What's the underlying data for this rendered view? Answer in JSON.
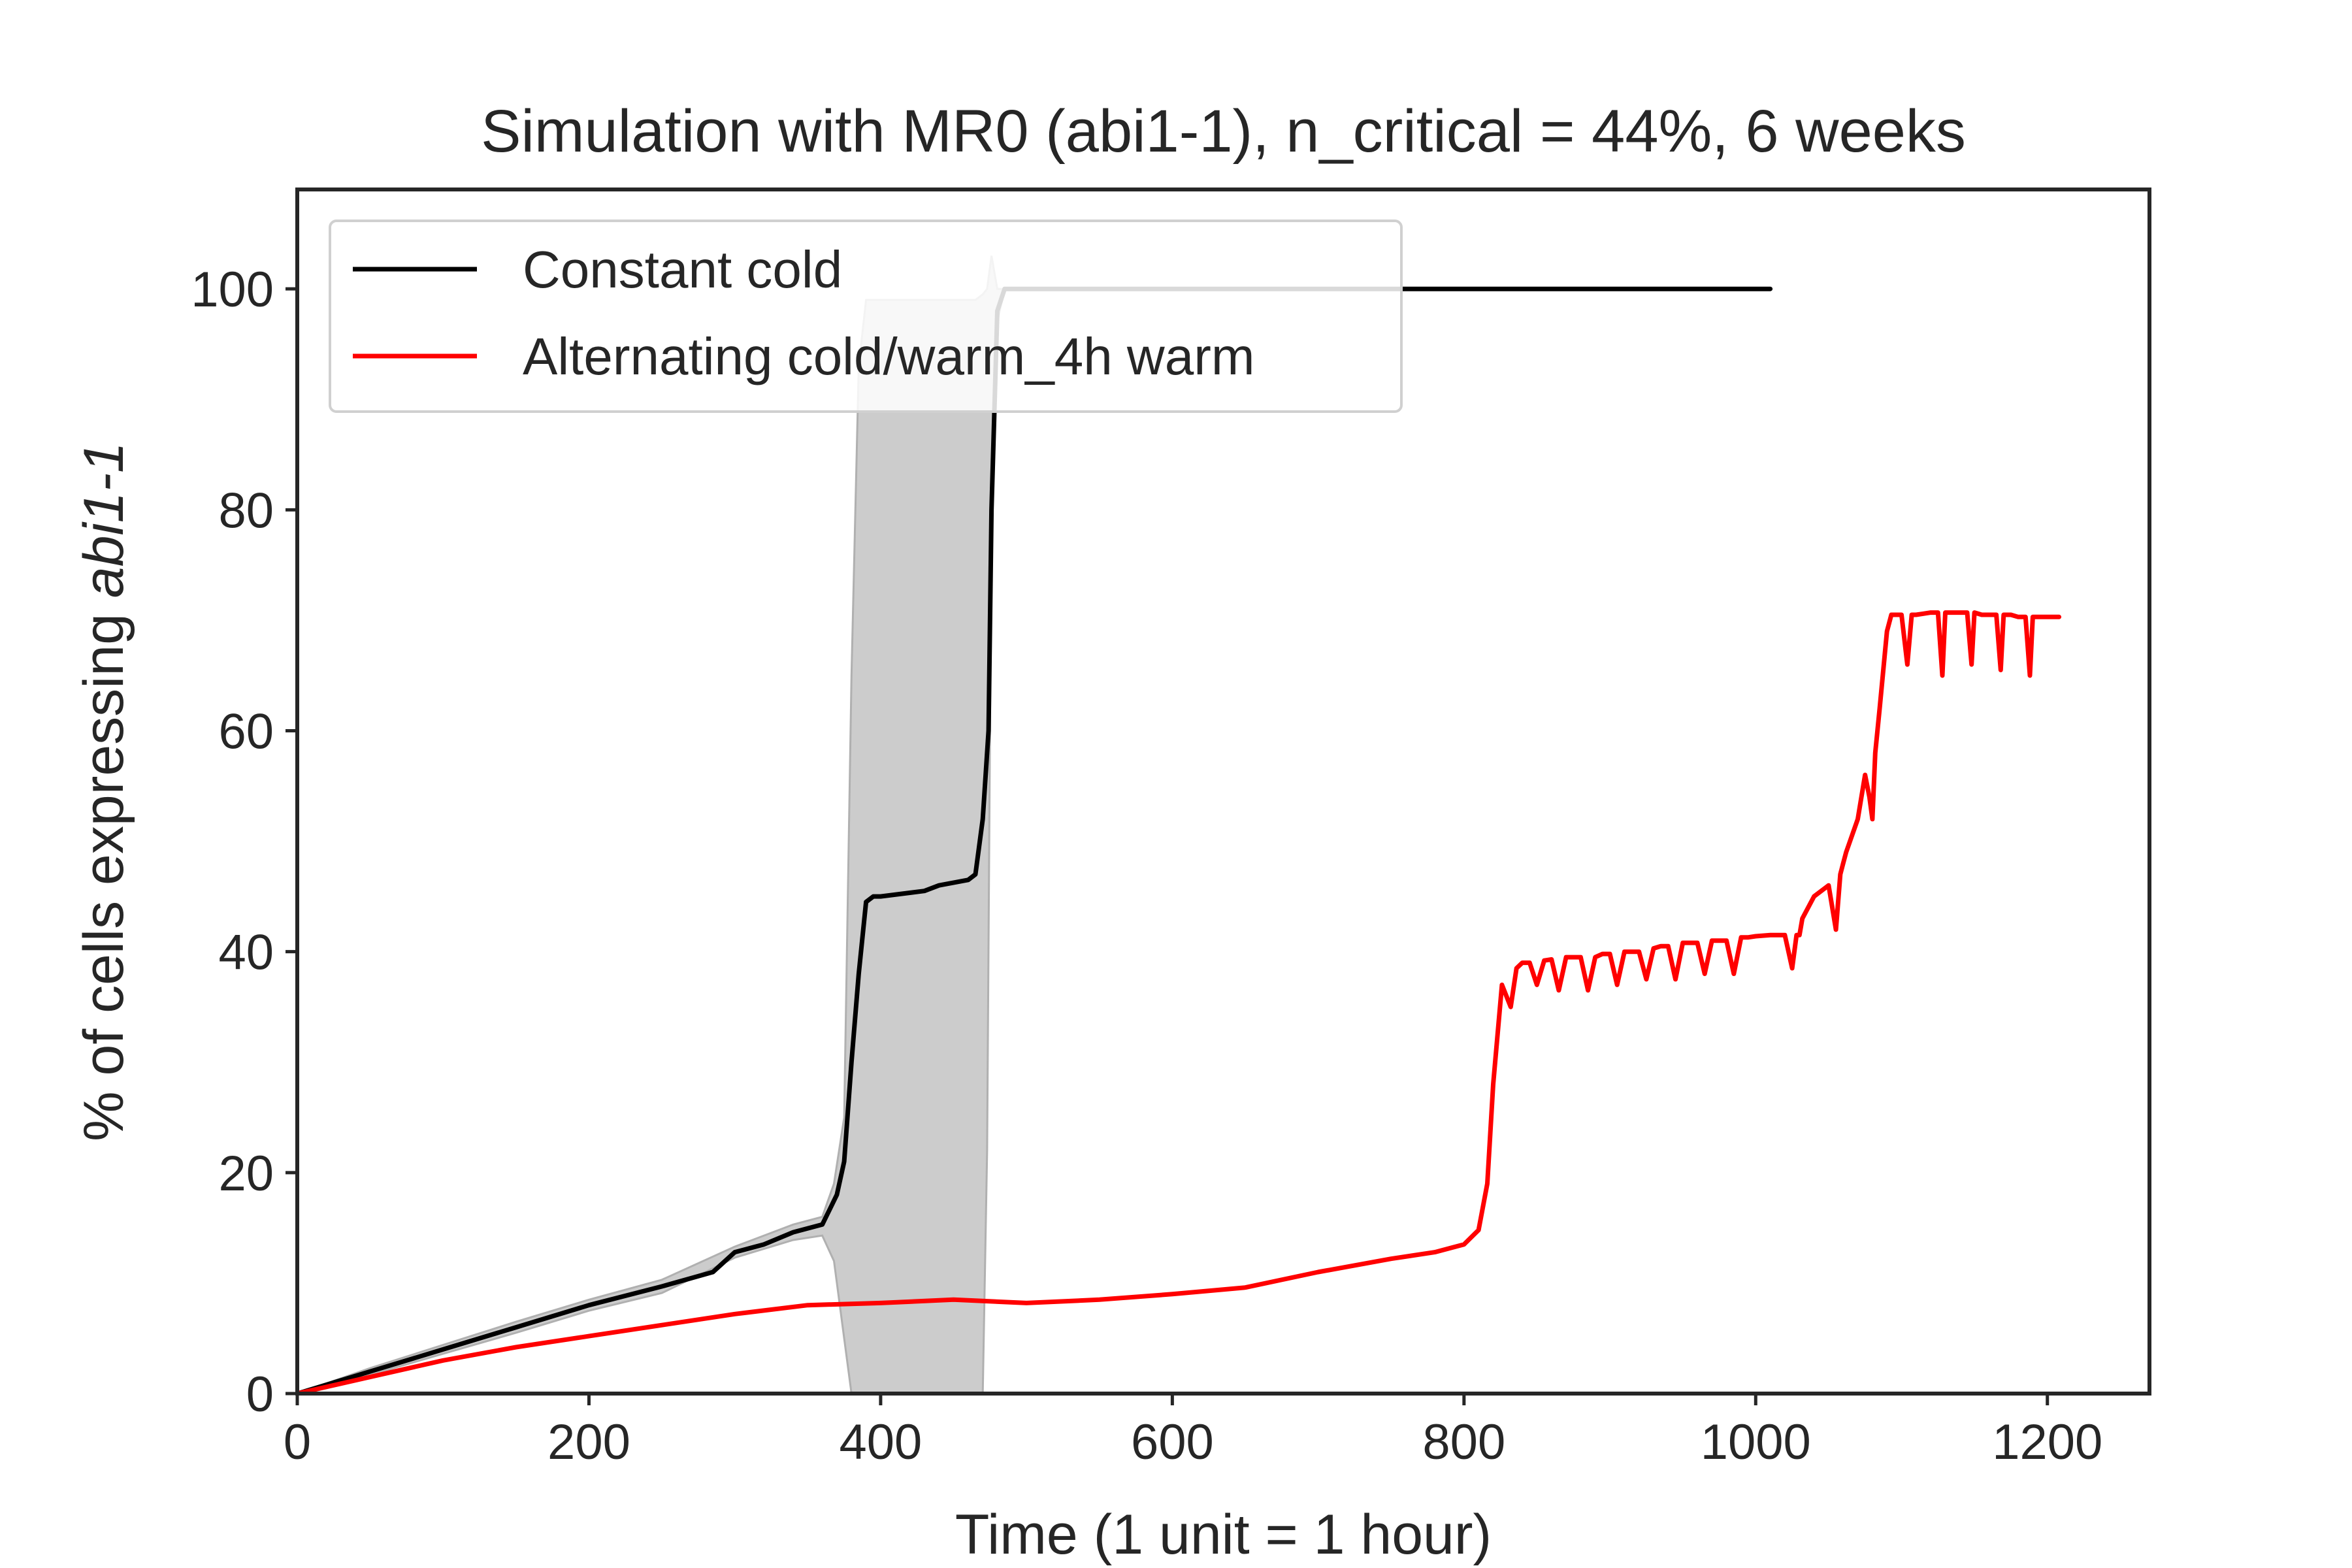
{
  "chart_data": {
    "type": "line",
    "title": "Simulation with MR0 (abi1-1), n_critical = 44%, 6 weeks",
    "xlabel": "Time (1 unit = 1 hour)",
    "ylabel_prefix": "% of cells expressing ",
    "ylabel_italic": "abi1-1",
    "xlim": [
      0,
      1270
    ],
    "ylim": [
      0,
      109
    ],
    "xticks": [
      0,
      200,
      400,
      600,
      800,
      1000,
      1200
    ],
    "yticks": [
      0,
      20,
      40,
      60,
      80,
      100
    ],
    "grid": false,
    "legend_position": "top-left",
    "series": [
      {
        "name": "Constant cold",
        "color": "#000000",
        "x": [
          0,
          50,
          100,
          150,
          200,
          250,
          285,
          300,
          320,
          340,
          360,
          370,
          375,
          380,
          385,
          390,
          395,
          400,
          430,
          440,
          460,
          465,
          470,
          474,
          476,
          480,
          485,
          490,
          500,
          600,
          700,
          800,
          900,
          1010
        ],
        "y": [
          0,
          2,
          4,
          6,
          8,
          9.7,
          11,
          12.8,
          13.5,
          14.6,
          15.3,
          18,
          21,
          30,
          38,
          44.5,
          45,
          45,
          45.5,
          46,
          46.5,
          47,
          52,
          60,
          80,
          98,
          100,
          100,
          100,
          100,
          100,
          100,
          100,
          100
        ],
        "band_x": [
          0,
          50,
          100,
          150,
          200,
          250,
          300,
          340,
          360,
          368,
          375,
          380,
          385,
          390,
          400,
          440,
          455,
          465,
          470,
          473,
          476,
          480,
          485,
          490,
          500,
          600,
          800,
          1010
        ],
        "band_upper": [
          0,
          2.3,
          4.4,
          6.5,
          8.5,
          10.3,
          13.3,
          15.3,
          16,
          19,
          25,
          65,
          93,
          99,
          99,
          99,
          99,
          99,
          99.5,
          100,
          103,
          100,
          100,
          100,
          100,
          100,
          100,
          100
        ],
        "band_lower": [
          0,
          1.7,
          3.6,
          5.5,
          7.5,
          9.1,
          12.3,
          13.9,
          14.3,
          12,
          5,
          0,
          0,
          0,
          0,
          0,
          0,
          0,
          0,
          22,
          80,
          97,
          100,
          100,
          100,
          100,
          100,
          100
        ],
        "band_color": "#cccccc"
      },
      {
        "name": "Alternating cold/warm_4h warm",
        "color": "#ff0000",
        "x": [
          0,
          50,
          100,
          150,
          200,
          250,
          300,
          350,
          400,
          450,
          500,
          550,
          600,
          650,
          700,
          750,
          780,
          800,
          810,
          816,
          820,
          826,
          832,
          836,
          840,
          845,
          850,
          855,
          860,
          865,
          870,
          875,
          880,
          885,
          890,
          895,
          900,
          905,
          910,
          915,
          920,
          925,
          930,
          935,
          940,
          945,
          950,
          955,
          960,
          965,
          970,
          975,
          980,
          985,
          990,
          995,
          1000,
          1010,
          1020,
          1025,
          1028,
          1030,
          1032,
          1040,
          1050,
          1055,
          1058,
          1060,
          1062,
          1070,
          1075,
          1078,
          1080,
          1082,
          1085,
          1090,
          1093,
          1095,
          1100,
          1104,
          1107,
          1110,
          1115,
          1120,
          1125,
          1128,
          1130,
          1135,
          1140,
          1145,
          1148,
          1150,
          1155,
          1160,
          1165,
          1168,
          1170,
          1175,
          1180,
          1185,
          1188,
          1190,
          1195,
          1200,
          1205,
          1208
        ],
        "y": [
          0,
          1.5,
          3,
          4.2,
          5.2,
          6.2,
          7.2,
          8,
          8.2,
          8.5,
          8.2,
          8.5,
          9,
          9.6,
          11,
          12.2,
          12.8,
          13.5,
          14.8,
          19,
          28,
          37,
          35,
          38.5,
          39,
          39,
          37,
          39.2,
          39.3,
          36.5,
          39.5,
          39.5,
          39.5,
          36.5,
          39.5,
          39.8,
          39.8,
          37,
          40,
          40,
          40,
          37.5,
          40.3,
          40.5,
          40.5,
          37.5,
          40.8,
          40.8,
          40.8,
          38,
          41,
          41,
          41,
          38,
          41.3,
          41.3,
          41.4,
          41.5,
          41.5,
          38.5,
          41.5,
          41.5,
          43,
          45,
          46,
          42,
          47,
          48,
          49,
          52,
          56,
          54,
          52,
          58,
          62,
          69,
          70.5,
          70.5,
          70.5,
          66,
          70.5,
          70.5,
          70.6,
          70.7,
          70.7,
          65,
          70.7,
          70.7,
          70.7,
          70.7,
          66,
          70.7,
          70.5,
          70.5,
          70.5,
          65.5,
          70.5,
          70.5,
          70.3,
          70.3,
          65,
          70.3,
          70.3,
          70.3,
          70.3,
          70.3
        ]
      }
    ]
  }
}
